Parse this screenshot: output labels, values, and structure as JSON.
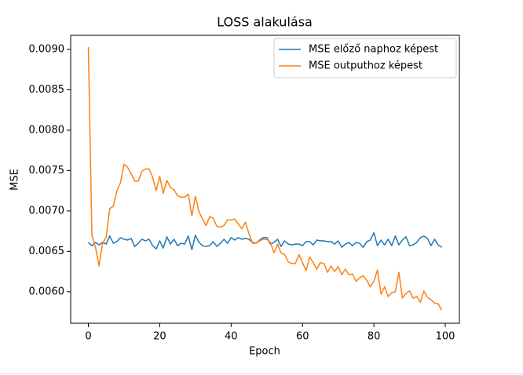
{
  "chart_data": {
    "type": "line",
    "title": "LOSS alakulása",
    "xlabel": "Epoch",
    "ylabel": "MSE",
    "x": [
      0,
      1,
      2,
      3,
      4,
      5,
      6,
      7,
      8,
      9,
      10,
      11,
      12,
      13,
      14,
      15,
      16,
      17,
      18,
      19,
      20,
      21,
      22,
      23,
      24,
      25,
      26,
      27,
      28,
      29,
      30,
      31,
      32,
      33,
      34,
      35,
      36,
      37,
      38,
      39,
      40,
      41,
      42,
      43,
      44,
      45,
      46,
      47,
      48,
      49,
      50,
      51,
      52,
      53,
      54,
      55,
      56,
      57,
      58,
      59,
      60,
      61,
      62,
      63,
      64,
      65,
      66,
      67,
      68,
      69,
      70,
      71,
      72,
      73,
      74,
      75,
      76,
      77,
      78,
      79,
      80,
      81,
      82,
      83,
      84,
      85,
      86,
      87,
      88,
      89,
      90,
      91,
      92,
      93,
      94,
      95,
      96,
      97,
      98,
      99
    ],
    "series": [
      {
        "name": "MSE előző naphoz képest",
        "color": "#1f77b4",
        "values": [
          0.00661,
          0.00657,
          0.00661,
          0.00658,
          0.00661,
          0.00659,
          0.00669,
          0.0066,
          0.00662,
          0.00667,
          0.00665,
          0.00664,
          0.00666,
          0.00656,
          0.0066,
          0.00665,
          0.00663,
          0.00665,
          0.00657,
          0.00653,
          0.00663,
          0.00654,
          0.00668,
          0.00659,
          0.00665,
          0.00657,
          0.0066,
          0.00659,
          0.00669,
          0.00652,
          0.0067,
          0.00661,
          0.00657,
          0.00656,
          0.00657,
          0.00662,
          0.00656,
          0.0066,
          0.00665,
          0.0066,
          0.00667,
          0.00664,
          0.00667,
          0.00665,
          0.00666,
          0.00665,
          0.00661,
          0.0066,
          0.00664,
          0.00667,
          0.00667,
          0.00659,
          0.00661,
          0.00665,
          0.00656,
          0.00663,
          0.00659,
          0.00658,
          0.00659,
          0.00659,
          0.00657,
          0.00662,
          0.00662,
          0.00658,
          0.00664,
          0.00663,
          0.00663,
          0.00662,
          0.00662,
          0.00659,
          0.00663,
          0.00655,
          0.00659,
          0.00661,
          0.00657,
          0.00661,
          0.0066,
          0.00655,
          0.00662,
          0.00664,
          0.00673,
          0.00657,
          0.00664,
          0.00658,
          0.00665,
          0.00657,
          0.00669,
          0.00658,
          0.00664,
          0.00668,
          0.00657,
          0.00658,
          0.00661,
          0.00667,
          0.00669,
          0.00666,
          0.00657,
          0.00665,
          0.00658,
          0.00655
        ]
      },
      {
        "name": "MSE outputhoz képest",
        "color": "#ff7f0e",
        "values": [
          0.00903,
          0.0067,
          0.00655,
          0.00632,
          0.0066,
          0.00668,
          0.00703,
          0.00706,
          0.00725,
          0.00735,
          0.00758,
          0.00754,
          0.00746,
          0.00737,
          0.00737,
          0.00749,
          0.00752,
          0.00752,
          0.00742,
          0.00725,
          0.00743,
          0.00722,
          0.00738,
          0.00729,
          0.00726,
          0.00719,
          0.00717,
          0.00717,
          0.00721,
          0.00694,
          0.00718,
          0.00699,
          0.0069,
          0.00682,
          0.00693,
          0.00691,
          0.00681,
          0.0068,
          0.00682,
          0.00689,
          0.00689,
          0.0069,
          0.00684,
          0.00678,
          0.00686,
          0.00672,
          0.0066,
          0.0066,
          0.00663,
          0.00665,
          0.00665,
          0.00661,
          0.00648,
          0.00659,
          0.00648,
          0.00646,
          0.00637,
          0.00635,
          0.00635,
          0.00646,
          0.00636,
          0.00626,
          0.00643,
          0.00636,
          0.00628,
          0.00636,
          0.00635,
          0.00624,
          0.00632,
          0.00625,
          0.00631,
          0.00621,
          0.00628,
          0.00621,
          0.00622,
          0.00613,
          0.00617,
          0.0062,
          0.00614,
          0.00606,
          0.00613,
          0.00627,
          0.00597,
          0.00606,
          0.00594,
          0.00599,
          0.006,
          0.00624,
          0.00592,
          0.00598,
          0.00601,
          0.00592,
          0.00594,
          0.00587,
          0.00601,
          0.00593,
          0.0059,
          0.00586,
          0.00585,
          0.00577
        ]
      }
    ],
    "xlim": [
      -4.95,
      103.95
    ],
    "xticks": [
      0,
      20,
      40,
      60,
      80,
      100
    ],
    "ylim": [
      0.00561,
      0.009175
    ],
    "yticks": [
      {
        "value": 0.006,
        "label": "0.0060"
      },
      {
        "value": 0.0065,
        "label": "0.0065"
      },
      {
        "value": 0.007,
        "label": "0.0070"
      },
      {
        "value": 0.0075,
        "label": "0.0075"
      },
      {
        "value": 0.008,
        "label": "0.0080"
      },
      {
        "value": 0.0085,
        "label": "0.0085"
      },
      {
        "value": 0.009,
        "label": "0.0090"
      }
    ],
    "legend": "upper right"
  }
}
